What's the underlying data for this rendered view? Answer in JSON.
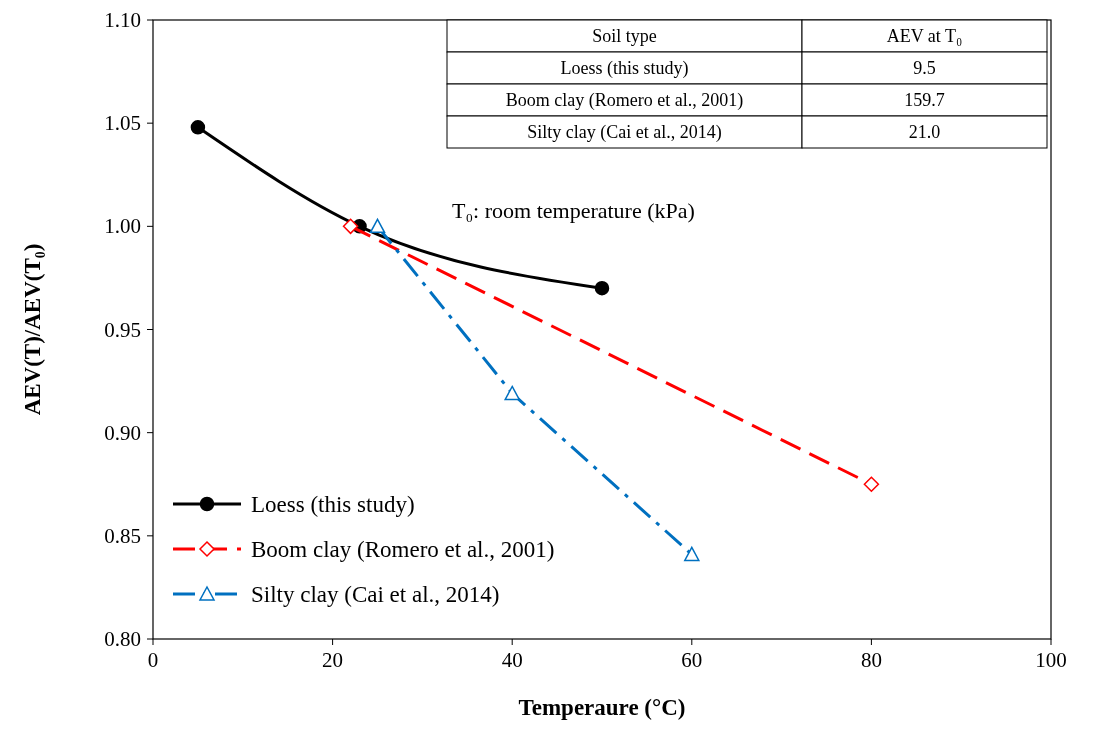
{
  "chart_data": {
    "type": "line",
    "xlabel": "Temperaure  (°C)",
    "ylabel": "AEV(T)/AEV(T₀)",
    "xlim": [
      0,
      100
    ],
    "xticks": [
      0,
      20,
      40,
      60,
      80,
      100
    ],
    "ylim": [
      0.8,
      1.1
    ],
    "yticks": [
      {
        "value": 0.8,
        "label": "0.80"
      },
      {
        "value": 0.85,
        "label": "0.85"
      },
      {
        "value": 0.9,
        "label": "0.90"
      },
      {
        "value": 0.95,
        "label": "0.95"
      },
      {
        "value": 1.0,
        "label": "1.00"
      },
      {
        "value": 1.05,
        "label": "1.05"
      },
      {
        "value": 1.1,
        "label": "1.10"
      }
    ],
    "grid": false,
    "legend": "bottom left",
    "series": [
      {
        "name": "Loess (this study)",
        "color": "#000000",
        "x": [
          5,
          23,
          50
        ],
        "values": [
          1.048,
          1.0,
          0.97
        ],
        "marker": "circle",
        "line_style": "solid"
      },
      {
        "name": "Boom clay (Romero et al., 2001)",
        "color": "#ff0000",
        "x": [
          22,
          80
        ],
        "values": [
          1.0,
          0.875
        ],
        "marker": "diamond",
        "line_style": "dashed"
      },
      {
        "name": "Silty clay (Cai et al., 2014)",
        "color": "#0070c0",
        "x": [
          25,
          40,
          60
        ],
        "values": [
          1.0,
          0.919,
          0.841
        ],
        "marker": "triangle",
        "line_style": "dashdot"
      }
    ],
    "annotations": [
      "Soil type",
      "AEV at T₀",
      "Loess (this study)",
      "9.5",
      "Boom clay (Romero et al., 2001)",
      "159.7",
      "Silty clay (Cai et al., 2014)",
      "21.0",
      "T₀: room temperature (kPa)"
    ]
  }
}
